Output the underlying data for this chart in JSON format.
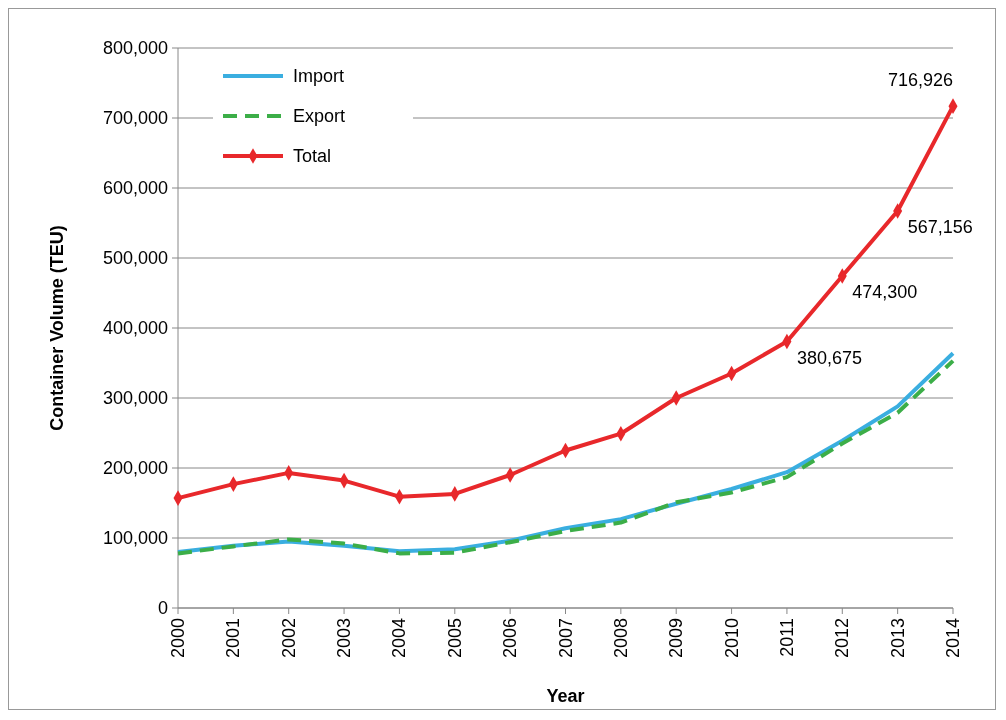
{
  "chart_data": {
    "type": "line",
    "xlabel": "Year",
    "ylabel": "Container Volume (TEU)",
    "categories": [
      "2000",
      "2001",
      "2002",
      "2003",
      "2004",
      "2005",
      "2006",
      "2007",
      "2008",
      "2009",
      "2010",
      "2011",
      "2012",
      "2013",
      "2014"
    ],
    "series": [
      {
        "name": "Import",
        "color": "#3aaee0",
        "line_style": "solid",
        "marker": "none",
        "values": [
          80000,
          89000,
          95000,
          89000,
          81000,
          84000,
          96000,
          114000,
          127000,
          149000,
          170000,
          194000,
          239000,
          288000,
          364000
        ]
      },
      {
        "name": "Export",
        "color": "#3cae48",
        "line_style": "dashed",
        "marker": "none",
        "values": [
          78000,
          88000,
          98000,
          92000,
          78000,
          79000,
          94000,
          110000,
          122000,
          151000,
          165000,
          187000,
          235000,
          279000,
          353000
        ]
      },
      {
        "name": "Total",
        "color": "#e8282b",
        "line_style": "solid",
        "marker": "diamond",
        "values": [
          157000,
          177000,
          193000,
          182000,
          159000,
          163000,
          190000,
          225000,
          249000,
          300000,
          335000,
          380675,
          474300,
          567156,
          716926
        ],
        "value_labels": [
          null,
          null,
          null,
          null,
          null,
          null,
          null,
          null,
          null,
          null,
          null,
          "380,675",
          "474,300",
          "567,156",
          "716,926"
        ]
      }
    ],
    "ylim": [
      0,
      800000
    ],
    "yticks": [
      0,
      {
        "value": 100000,
        "label": "100,000"
      },
      {
        "value": 200000,
        "label": "200,000"
      },
      {
        "value": 300000,
        "label": "300,000"
      },
      {
        "value": 400000,
        "label": "400,000"
      },
      {
        "value": 500000,
        "label": "500,000"
      },
      {
        "value": 600000,
        "label": "600,000"
      },
      {
        "value": 700000,
        "label": "700,000"
      },
      {
        "value": 800000,
        "label": "800,000"
      }
    ],
    "grid": "y",
    "legend": "top left"
  }
}
